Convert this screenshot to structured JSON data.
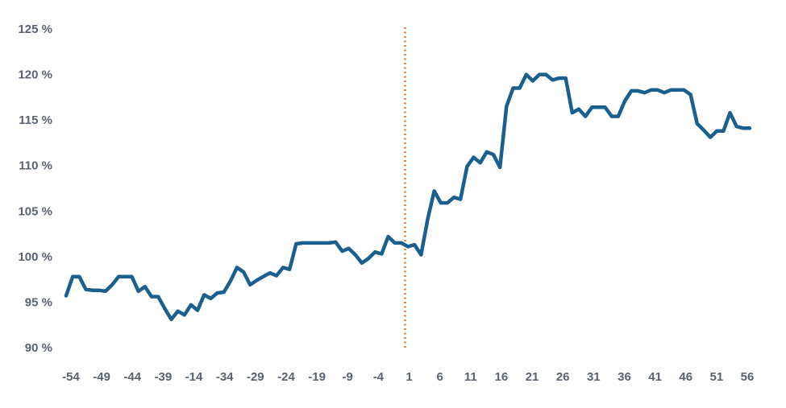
{
  "chart_data": {
    "type": "line",
    "title": "",
    "xlabel": "",
    "ylabel": "",
    "ylim": [
      90,
      125
    ],
    "grid": false,
    "legend": "none",
    "y_ticks": [
      "90 %",
      "95 %",
      "100 %",
      "105 %",
      "110 %",
      "115 %",
      "120 %",
      "125 %"
    ],
    "y_tick_values": [
      90,
      95,
      100,
      105,
      110,
      115,
      120,
      125
    ],
    "x_ticks": [
      "-54",
      "-49",
      "-44",
      "-39",
      "-14",
      "-34",
      "-29",
      "-24",
      "-19",
      "-9",
      "-4",
      "1",
      "6",
      "11",
      "16",
      "21",
      "26",
      "31",
      "36",
      "41",
      "46",
      "51",
      "56"
    ],
    "event_marker": {
      "x_label": "1",
      "color": "#e07a2e",
      "style": "dotted"
    },
    "series": [
      {
        "color": "#1b5f8e",
        "values": [
          95.7,
          97.8,
          97.8,
          96.4,
          96.3,
          96.3,
          96.2,
          96.9,
          97.8,
          97.8,
          97.8,
          96.2,
          96.7,
          95.6,
          95.6,
          94.3,
          93.1,
          94.0,
          93.6,
          94.7,
          94.1,
          95.8,
          95.4,
          96.0,
          96.1,
          97.3,
          98.8,
          98.3,
          96.9,
          97.4,
          97.8,
          98.2,
          97.9,
          98.8,
          98.6,
          101.4,
          101.5,
          101.5,
          101.5,
          101.5,
          101.5,
          101.6,
          100.6,
          100.9,
          100.2,
          99.3,
          99.8,
          100.5,
          100.3,
          102.2,
          101.5,
          101.5,
          101.1,
          101.3,
          100.2,
          104.1,
          107.2,
          105.9,
          105.9,
          106.5,
          106.3,
          109.9,
          110.9,
          110.3,
          111.5,
          111.2,
          109.8,
          116.5,
          118.5,
          118.5,
          120.0,
          119.3,
          120.0,
          120.0,
          119.4,
          119.6,
          119.6,
          115.8,
          116.2,
          115.4,
          116.4,
          116.4,
          116.4,
          115.4,
          115.4,
          117.1,
          118.2,
          118.2,
          118.0,
          118.3,
          118.3,
          118.0,
          118.3,
          118.3,
          118.3,
          117.8,
          114.6,
          113.9,
          113.1,
          113.8,
          113.8,
          115.8,
          114.3,
          114.1,
          114.1
        ]
      }
    ]
  }
}
